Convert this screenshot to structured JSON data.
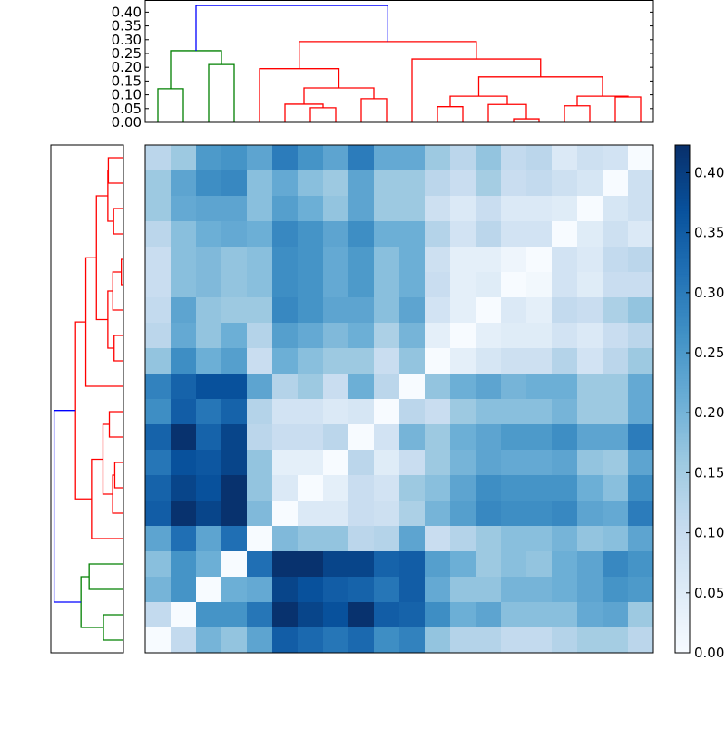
{
  "chart_data": {
    "type": "heatmap",
    "title": "",
    "description_of_layout": "clustered heatmap with dendrograms",
    "n_leaves": 20,
    "matrix_rows_top_to_bottom": [
      [
        0.12,
        0.16,
        0.25,
        0.26,
        0.23,
        0.3,
        0.26,
        0.23,
        0.3,
        0.22,
        0.22,
        0.16,
        0.12,
        0.17,
        0.11,
        0.12,
        0.06,
        0.09,
        0.08,
        0.0
      ],
      [
        0.16,
        0.23,
        0.27,
        0.28,
        0.18,
        0.22,
        0.18,
        0.16,
        0.23,
        0.16,
        0.16,
        0.12,
        0.1,
        0.15,
        0.1,
        0.11,
        0.09,
        0.07,
        0.0,
        0.09
      ],
      [
        0.16,
        0.22,
        0.23,
        0.23,
        0.18,
        0.24,
        0.21,
        0.17,
        0.23,
        0.16,
        0.16,
        0.09,
        0.06,
        0.1,
        0.06,
        0.06,
        0.05,
        0.0,
        0.07,
        0.09
      ],
      [
        0.12,
        0.18,
        0.21,
        0.22,
        0.21,
        0.28,
        0.26,
        0.23,
        0.27,
        0.21,
        0.21,
        0.13,
        0.08,
        0.12,
        0.08,
        0.08,
        0.0,
        0.05,
        0.09,
        0.06
      ],
      [
        0.1,
        0.18,
        0.19,
        0.17,
        0.18,
        0.27,
        0.26,
        0.22,
        0.25,
        0.18,
        0.21,
        0.09,
        0.04,
        0.04,
        0.02,
        0.0,
        0.08,
        0.06,
        0.11,
        0.12
      ],
      [
        0.1,
        0.18,
        0.19,
        0.17,
        0.18,
        0.27,
        0.26,
        0.22,
        0.25,
        0.18,
        0.21,
        0.1,
        0.04,
        0.05,
        0.0,
        0.01,
        0.08,
        0.05,
        0.1,
        0.1
      ],
      [
        0.11,
        0.23,
        0.17,
        0.16,
        0.16,
        0.28,
        0.26,
        0.23,
        0.23,
        0.18,
        0.23,
        0.08,
        0.04,
        0.0,
        0.06,
        0.04,
        0.11,
        0.1,
        0.14,
        0.17
      ],
      [
        0.12,
        0.22,
        0.17,
        0.21,
        0.13,
        0.24,
        0.22,
        0.19,
        0.21,
        0.14,
        0.2,
        0.04,
        0.0,
        0.04,
        0.05,
        0.05,
        0.08,
        0.06,
        0.1,
        0.12
      ],
      [
        0.17,
        0.27,
        0.21,
        0.24,
        0.1,
        0.21,
        0.18,
        0.16,
        0.16,
        0.1,
        0.17,
        0.0,
        0.04,
        0.07,
        0.09,
        0.09,
        0.13,
        0.08,
        0.12,
        0.16
      ],
      [
        0.29,
        0.34,
        0.37,
        0.37,
        0.23,
        0.13,
        0.16,
        0.1,
        0.21,
        0.12,
        0.0,
        0.17,
        0.21,
        0.23,
        0.2,
        0.21,
        0.21,
        0.16,
        0.16,
        0.22
      ],
      [
        0.27,
        0.35,
        0.31,
        0.34,
        0.13,
        0.08,
        0.08,
        0.06,
        0.07,
        0.0,
        0.12,
        0.1,
        0.16,
        0.18,
        0.18,
        0.18,
        0.2,
        0.16,
        0.16,
        0.22
      ],
      [
        0.34,
        0.42,
        0.34,
        0.39,
        0.12,
        0.1,
        0.1,
        0.12,
        0.0,
        0.08,
        0.2,
        0.16,
        0.21,
        0.23,
        0.25,
        0.25,
        0.27,
        0.23,
        0.23,
        0.3
      ],
      [
        0.31,
        0.37,
        0.36,
        0.39,
        0.17,
        0.04,
        0.04,
        0.0,
        0.12,
        0.05,
        0.1,
        0.16,
        0.2,
        0.23,
        0.22,
        0.22,
        0.23,
        0.17,
        0.16,
        0.23
      ],
      [
        0.34,
        0.39,
        0.37,
        0.42,
        0.17,
        0.06,
        0.0,
        0.04,
        0.1,
        0.08,
        0.16,
        0.18,
        0.23,
        0.27,
        0.26,
        0.26,
        0.26,
        0.21,
        0.18,
        0.27
      ],
      [
        0.35,
        0.42,
        0.39,
        0.42,
        0.19,
        0.0,
        0.06,
        0.06,
        0.1,
        0.09,
        0.14,
        0.2,
        0.24,
        0.28,
        0.27,
        0.27,
        0.28,
        0.23,
        0.22,
        0.3
      ],
      [
        0.23,
        0.32,
        0.23,
        0.32,
        0.0,
        0.19,
        0.17,
        0.17,
        0.12,
        0.13,
        0.23,
        0.1,
        0.13,
        0.16,
        0.18,
        0.18,
        0.2,
        0.17,
        0.18,
        0.23
      ],
      [
        0.18,
        0.26,
        0.21,
        0.0,
        0.32,
        0.42,
        0.42,
        0.39,
        0.39,
        0.34,
        0.35,
        0.24,
        0.21,
        0.16,
        0.18,
        0.17,
        0.21,
        0.23,
        0.28,
        0.26
      ],
      [
        0.2,
        0.26,
        0.0,
        0.21,
        0.22,
        0.39,
        0.37,
        0.35,
        0.34,
        0.31,
        0.35,
        0.22,
        0.17,
        0.17,
        0.2,
        0.2,
        0.21,
        0.23,
        0.26,
        0.25
      ],
      [
        0.11,
        0.0,
        0.26,
        0.26,
        0.31,
        0.42,
        0.39,
        0.37,
        0.42,
        0.35,
        0.34,
        0.27,
        0.21,
        0.23,
        0.18,
        0.18,
        0.18,
        0.22,
        0.23,
        0.16
      ],
      [
        0.0,
        0.11,
        0.2,
        0.17,
        0.23,
        0.35,
        0.33,
        0.31,
        0.33,
        0.27,
        0.29,
        0.17,
        0.13,
        0.13,
        0.11,
        0.11,
        0.13,
        0.15,
        0.15,
        0.12
      ]
    ],
    "colormap": [
      "#f7fbff",
      "#deebf7",
      "#c6dbef",
      "#9ecae1",
      "#6baed6",
      "#4292c6",
      "#2171b5",
      "#08519c",
      "#08306b"
    ],
    "vmin": 0.0,
    "vmax": 0.423,
    "colorbar_ticks": [
      "0.00",
      "0.05",
      "0.10",
      "0.15",
      "0.20",
      "0.25",
      "0.30",
      "0.35",
      "0.40"
    ],
    "dendrogram": {
      "ylim": [
        0,
        0.444
      ],
      "yticks": [
        "0.00",
        "0.05",
        "0.10",
        "0.15",
        "0.20",
        "0.25",
        "0.30",
        "0.35",
        "0.40"
      ],
      "linkage": [
        [
          6,
          7,
          0.053,
          "red"
        ],
        [
          5,
          20,
          0.066,
          "red"
        ],
        [
          8,
          9,
          0.086,
          "red"
        ],
        [
          21,
          22,
          0.125,
          "red"
        ],
        [
          4,
          23,
          0.195,
          "red"
        ],
        [
          14,
          15,
          0.013,
          "red"
        ],
        [
          13,
          25,
          0.065,
          "red"
        ],
        [
          11,
          12,
          0.057,
          "red"
        ],
        [
          27,
          26,
          0.095,
          "red"
        ],
        [
          16,
          17,
          0.06,
          "red"
        ],
        [
          18,
          19,
          0.092,
          "red"
        ],
        [
          29,
          30,
          0.095,
          "red"
        ],
        [
          28,
          31,
          0.165,
          "red"
        ],
        [
          10,
          32,
          0.23,
          "red"
        ],
        [
          24,
          33,
          0.293,
          "red"
        ],
        [
          0,
          1,
          0.122,
          "green"
        ],
        [
          2,
          3,
          0.21,
          "green"
        ],
        [
          35,
          36,
          0.26,
          "green"
        ],
        [
          37,
          34,
          0.424,
          "blue"
        ]
      ],
      "colors": {
        "red": "#ff0000",
        "green": "#008000",
        "blue": "#0000ff"
      }
    }
  }
}
